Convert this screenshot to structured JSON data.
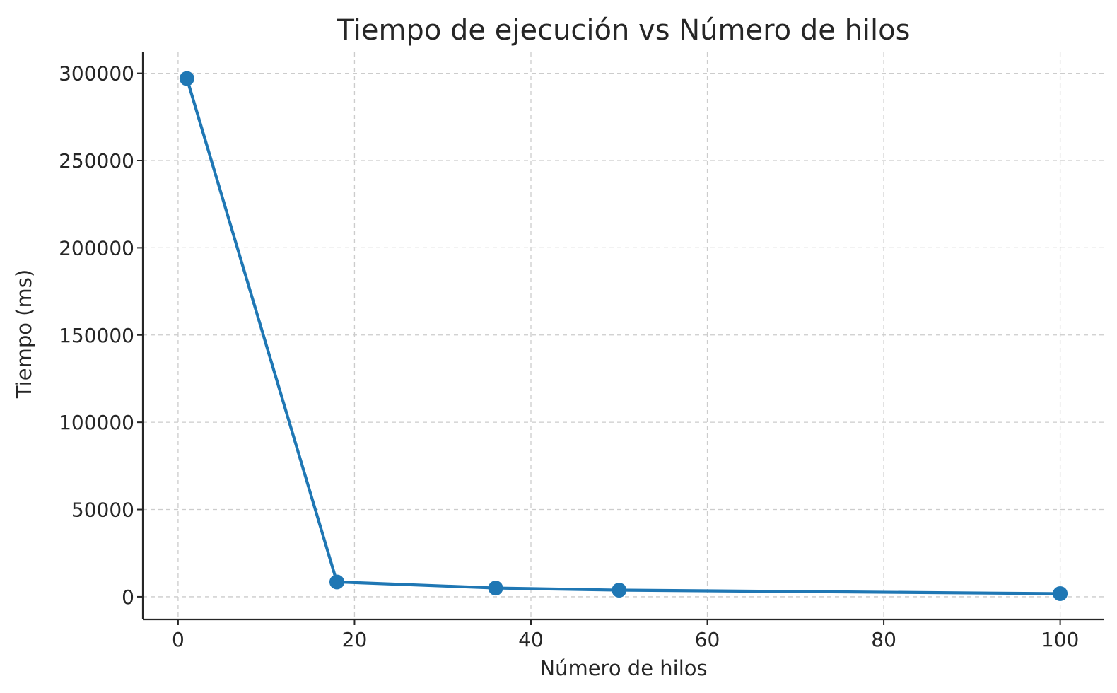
{
  "chart_data": {
    "type": "line",
    "title": "Tiempo de ejecución vs Número de hilos",
    "xlabel": "Número de hilos",
    "ylabel": "Tiempo (ms)",
    "x": [
      1,
      18,
      36,
      50,
      100
    ],
    "series": [
      {
        "values": [
          297000,
          8500,
          5000,
          3800,
          1800
        ],
        "color": "#1f77b4"
      }
    ],
    "xlim": [
      -4,
      105
    ],
    "ylim": [
      -13000,
      312000
    ],
    "xticks": [
      0,
      20,
      40,
      60,
      80,
      100
    ],
    "xtick_labels": [
      "0",
      "20",
      "40",
      "60",
      "80",
      "100"
    ],
    "yticks": [
      0,
      50000,
      100000,
      150000,
      200000,
      250000,
      300000
    ],
    "ytick_labels": [
      "0",
      "50000",
      "100000",
      "150000",
      "200000",
      "250000",
      "300000"
    ],
    "grid": true,
    "grid_style": "dashed",
    "markers": "circle"
  }
}
